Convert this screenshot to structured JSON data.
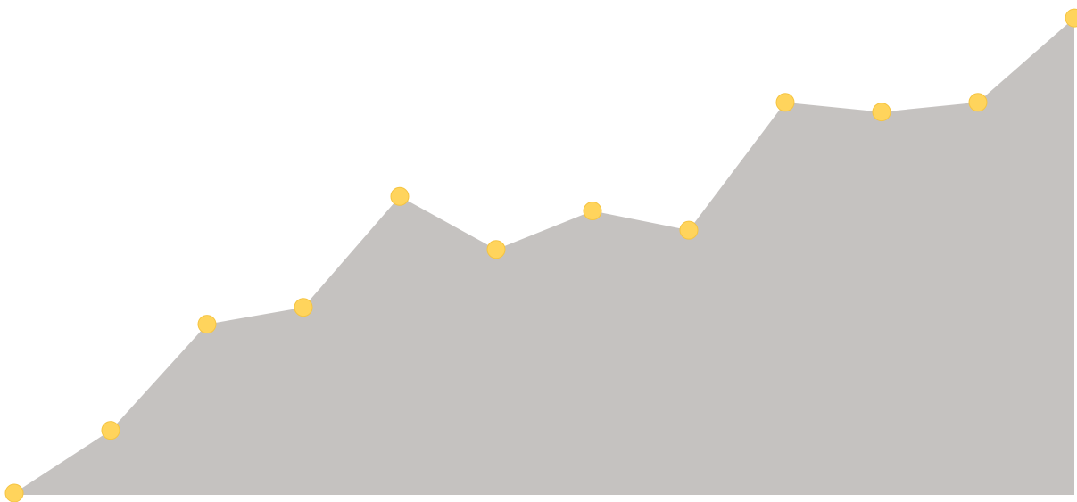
{
  "chart_data": {
    "type": "area",
    "title": "",
    "xlabel": "",
    "ylabel": "",
    "x": [
      0,
      1,
      2,
      3,
      4,
      5,
      6,
      7,
      8,
      9,
      10,
      11
    ],
    "series": [
      {
        "values": [
          0,
          13,
          35,
          38.5,
          61.5,
          50.5,
          58.5,
          54.5,
          81,
          79,
          81,
          98.5
        ]
      }
    ],
    "xlim": [
      0,
      11
    ],
    "ylim": [
      0,
      100
    ],
    "grid": false,
    "legend": "none",
    "colors": {
      "area_fill": "#c5c2c0",
      "marker_fill": "#ffd45c",
      "marker_stroke": "#f5c441",
      "background": "#ffffff"
    }
  }
}
